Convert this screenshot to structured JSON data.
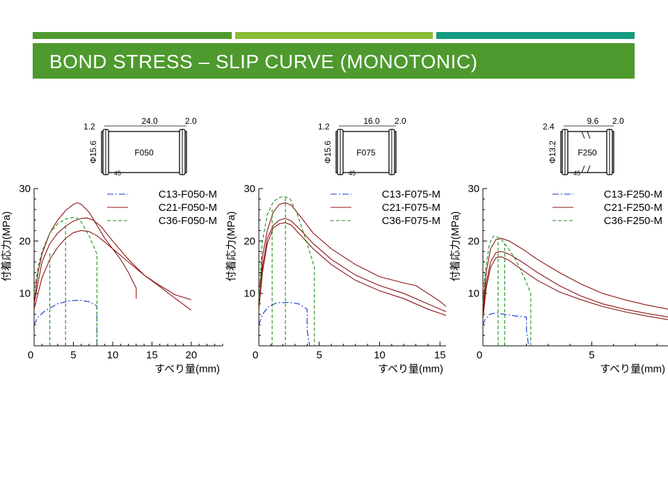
{
  "slide": {
    "title": "BOND STRESS – SLIP CURVE (MONOTONIC)",
    "colors": {
      "bar1": "#4e9a2e",
      "bar2": "#8bbb35",
      "bar3": "#129a80",
      "title_band": "#4e9a2e",
      "title_text": "#ffffff"
    }
  },
  "chart_data": [
    {
      "type": "line",
      "xlabel": "すべり量(mm)",
      "ylabel": "付着応力(MPa)",
      "xlim": [
        0,
        24
      ],
      "ylim": [
        0,
        30
      ],
      "xticks": [
        0,
        5,
        10,
        15,
        20
      ],
      "yticks": [
        10,
        20,
        30
      ],
      "legend_position": "top-right",
      "specimen": {
        "label": "F050",
        "dims": [
          "1.2",
          "24.0",
          "2.0",
          "Φ15.6",
          "45"
        ]
      },
      "series": [
        {
          "name": "C13-F050-M",
          "color": "#1030d0",
          "dash": "dashdot",
          "x": [
            0,
            0.5,
            1.5,
            3,
            4.5,
            6,
            7,
            8,
            8
          ],
          "y": [
            4,
            5.5,
            6.8,
            8,
            8.6,
            8.7,
            8.4,
            7.6,
            0
          ]
        },
        {
          "name": "C21-F050-M",
          "color": "#8b1010",
          "dash": "solid",
          "x": [
            0,
            0.5,
            1,
            2,
            3,
            4,
            5,
            5.5,
            6,
            7,
            8,
            9,
            10,
            11,
            12,
            12.5,
            13,
            13
          ],
          "y": [
            8,
            14,
            17.5,
            21.5,
            24,
            25.8,
            27,
            27.3,
            27,
            25.5,
            23,
            20.5,
            18.5,
            16.5,
            14,
            12.5,
            11,
            9
          ]
        },
        {
          "name": "",
          "color": "#8b1010",
          "dash": "solid",
          "x": [
            0,
            1,
            2,
            3,
            4,
            5,
            6,
            6.7,
            7.5,
            8.5,
            10,
            12,
            14,
            16,
            18,
            20
          ],
          "y": [
            8,
            16,
            19.5,
            21.5,
            22.8,
            23.8,
            24.3,
            24.4,
            24,
            22.8,
            20,
            16.5,
            13.5,
            11.5,
            9.7,
            8.8
          ]
        },
        {
          "name": "",
          "color": "#8b1010",
          "dash": "solid",
          "x": [
            0,
            1,
            2,
            3,
            4,
            5,
            6,
            7,
            8,
            9,
            10,
            12,
            14,
            16,
            18,
            20
          ],
          "y": [
            7,
            13,
            16.5,
            18.8,
            20.5,
            21.6,
            22,
            21.8,
            21,
            19.8,
            18.5,
            16,
            13.5,
            11.3,
            9,
            6.8
          ]
        },
        {
          "name": "C36-F050-M",
          "color": "#169016",
          "dash": "dashed",
          "x": [
            0,
            0.5,
            1,
            2,
            3,
            4,
            5,
            5.5,
            6,
            7,
            8,
            8
          ],
          "y": [
            10,
            15,
            18,
            21.5,
            23.3,
            24.2,
            24.5,
            24.3,
            23.6,
            21,
            17.5,
            0
          ]
        },
        {
          "name": "",
          "color": "#169016",
          "dash": "dashed",
          "x": [
            2,
            2
          ],
          "y": [
            0,
            18
          ]
        },
        {
          "name": "",
          "color": "#169016",
          "dash": "dashed",
          "x": [
            4,
            4
          ],
          "y": [
            0,
            23.5
          ]
        }
      ]
    },
    {
      "type": "line",
      "xlabel": "すべり量(mm)",
      "ylabel": "付着応力(MPa)",
      "xlim": [
        0,
        15.5
      ],
      "ylim": [
        0,
        30
      ],
      "xticks": [
        0,
        5,
        10,
        15
      ],
      "yticks": [
        10,
        20,
        30
      ],
      "legend_position": "top-right",
      "specimen": {
        "label": "F075",
        "dims": [
          "1.2",
          "16.0",
          "2.0",
          "Φ15.6",
          "45"
        ]
      },
      "series": [
        {
          "name": "C13-F075-M",
          "color": "#1030d0",
          "dash": "dashdot",
          "x": [
            0,
            0.3,
            0.8,
            1.5,
            2.5,
            3.3,
            4,
            4,
            4.2
          ],
          "y": [
            4,
            6,
            7.5,
            8.2,
            8.3,
            8,
            7,
            3,
            0
          ]
        },
        {
          "name": "C21-F075-M",
          "color": "#8b1010",
          "dash": "solid",
          "x": [
            0,
            0.3,
            0.7,
            1.2,
            1.7,
            2.2,
            2.7,
            3.5,
            4.5,
            6,
            8,
            10,
            12,
            13,
            14,
            15,
            15.5
          ],
          "y": [
            7,
            17,
            22,
            25.5,
            27,
            27.3,
            26.8,
            24.5,
            21.5,
            18.5,
            15.5,
            13.2,
            12,
            11.5,
            10,
            8.5,
            7.5
          ]
        },
        {
          "name": "",
          "color": "#8b1010",
          "dash": "solid",
          "x": [
            0,
            0.3,
            0.7,
            1.2,
            1.7,
            2.2,
            2.7,
            3.5,
            4.5,
            6,
            8,
            10,
            12,
            14,
            15.5
          ],
          "y": [
            7,
            15,
            20.5,
            23,
            24,
            24.3,
            23.8,
            22,
            19.5,
            16.5,
            13.5,
            11.5,
            10,
            8,
            6.5
          ]
        },
        {
          "name": "",
          "color": "#8b1010",
          "dash": "solid",
          "x": [
            0,
            0.3,
            0.7,
            1.2,
            1.7,
            2.2,
            2.7,
            3.5,
            4.5,
            6,
            8,
            10,
            12,
            14,
            15.5
          ],
          "y": [
            7,
            14,
            19.5,
            22.5,
            23.3,
            23.5,
            23,
            21,
            18.5,
            15.5,
            12.5,
            10.5,
            9,
            7,
            5.8
          ]
        },
        {
          "name": "C36-F075-M",
          "color": "#169016",
          "dash": "dashed",
          "x": [
            0,
            0.3,
            0.7,
            1.2,
            1.7,
            2.1,
            2.6,
            3.2,
            4,
            4.6,
            4.6
          ],
          "y": [
            9,
            20,
            25,
            27.5,
            28.3,
            28.5,
            28,
            25,
            19.5,
            15,
            0
          ]
        },
        {
          "name": "",
          "color": "#169016",
          "dash": "dashed",
          "x": [
            1.1,
            1.1
          ],
          "y": [
            0,
            26
          ]
        },
        {
          "name": "",
          "color": "#169016",
          "dash": "dashed",
          "x": [
            2.2,
            2.2
          ],
          "y": [
            0,
            28.5
          ]
        }
      ]
    },
    {
      "type": "line",
      "xlabel": "すべり量(mm)",
      "ylabel": "付着応力(MPa)",
      "xlim": [
        0,
        8.5
      ],
      "ylim": [
        0,
        30
      ],
      "xticks": [
        0,
        5
      ],
      "yticks": [
        10,
        20,
        30
      ],
      "legend_position": "top-right",
      "specimen": {
        "label": "F250",
        "dims": [
          "2.4",
          "9.6",
          "2.0",
          "Φ13.2",
          "45"
        ]
      },
      "series": [
        {
          "name": "C13-F250-M",
          "color": "#1030d0",
          "dash": "dashdot",
          "x": [
            0,
            0.1,
            0.3,
            0.6,
            1,
            1.5,
            2,
            2,
            2.1
          ],
          "y": [
            4,
            5,
            6,
            6.3,
            6,
            5.7,
            5.5,
            3,
            0
          ]
        },
        {
          "name": "C21-F250-M",
          "color": "#8b1010",
          "dash": "solid",
          "x": [
            0,
            0.15,
            0.35,
            0.6,
            0.85,
            1.2,
            1.8,
            2.5,
            3.5,
            4.5,
            5.5,
            6.5,
            7.5,
            8.5
          ],
          "y": [
            7,
            14,
            18.5,
            20.3,
            20.5,
            20,
            18.5,
            16.5,
            14,
            11.8,
            10,
            8.8,
            7.8,
            7
          ]
        },
        {
          "name": "",
          "color": "#8b1010",
          "dash": "solid",
          "x": [
            0,
            0.15,
            0.35,
            0.6,
            0.85,
            1.2,
            1.8,
            2.5,
            3.5,
            4.5,
            5.5,
            6.5,
            7.5,
            8.5
          ],
          "y": [
            6,
            12,
            16,
            17.8,
            18,
            17.5,
            16,
            14,
            11.5,
            9.5,
            8,
            7,
            6.2,
            5.5
          ]
        },
        {
          "name": "",
          "color": "#8b1010",
          "dash": "solid",
          "x": [
            0,
            0.15,
            0.35,
            0.6,
            0.85,
            1.2,
            1.8,
            2.5,
            3.5,
            4.5,
            5.5,
            6.5,
            7.5,
            8.5
          ],
          "y": [
            5,
            11,
            15,
            16.8,
            17,
            16.3,
            14.5,
            12.5,
            10.3,
            8.8,
            7.5,
            6.5,
            5.7,
            5
          ]
        },
        {
          "name": "C36-F250-M",
          "color": "#169016",
          "dash": "dashed",
          "x": [
            0,
            0.1,
            0.3,
            0.5,
            0.8,
            1.1,
            1.5,
            1.9,
            2.2,
            2.2
          ],
          "y": [
            8,
            14,
            19.5,
            21,
            20.5,
            19,
            16.5,
            13,
            10,
            0
          ]
        },
        {
          "name": "",
          "color": "#169016",
          "dash": "dashed",
          "x": [
            0.7,
            0.7
          ],
          "y": [
            0,
            20.5
          ]
        },
        {
          "name": "",
          "color": "#169016",
          "dash": "dashed",
          "x": [
            1.0,
            1.0
          ],
          "y": [
            0,
            19.5
          ]
        }
      ]
    }
  ]
}
